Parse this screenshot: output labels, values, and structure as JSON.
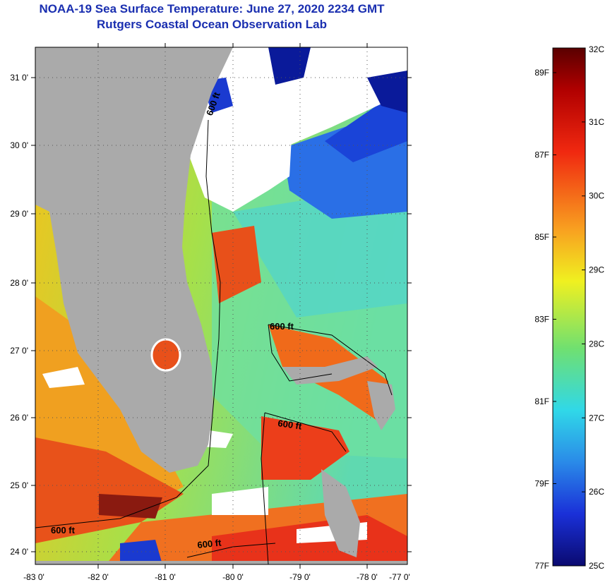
{
  "header": {
    "title": "NOAA-19 Sea Surface Temperature:  June 27, 2020 2234 GMT",
    "subtitle": "Rutgers Coastal Ocean Observation Lab"
  },
  "map": {
    "lat_ticks": [
      "31 0'",
      "30 0'",
      "29 0'",
      "28 0'",
      "27 0'",
      "26 0'",
      "25 0'",
      "24 0'"
    ],
    "lon_ticks": [
      "-83 0'",
      "-82 0'",
      "-81 0'",
      "-80 0'",
      "-79 0'",
      "-78 0'",
      "-77 0'"
    ],
    "contour_labels": [
      "600 ft",
      "600 ft",
      "600 ft",
      "600 ft",
      "600 ft"
    ],
    "colors": {
      "land": "#aaaaaa",
      "cloud": "#ffffff",
      "warm": "#e8221a",
      "cool": "#1e4fe0"
    }
  },
  "colorbar": {
    "celsius_labels": [
      "32C",
      "31C",
      "30C",
      "29C",
      "28C",
      "27C",
      "26C",
      "25C"
    ],
    "fahrenheit_labels": [
      "89F",
      "87F",
      "85F",
      "83F",
      "81F",
      "79F",
      "77F"
    ],
    "range_c": [
      25,
      32
    ]
  }
}
